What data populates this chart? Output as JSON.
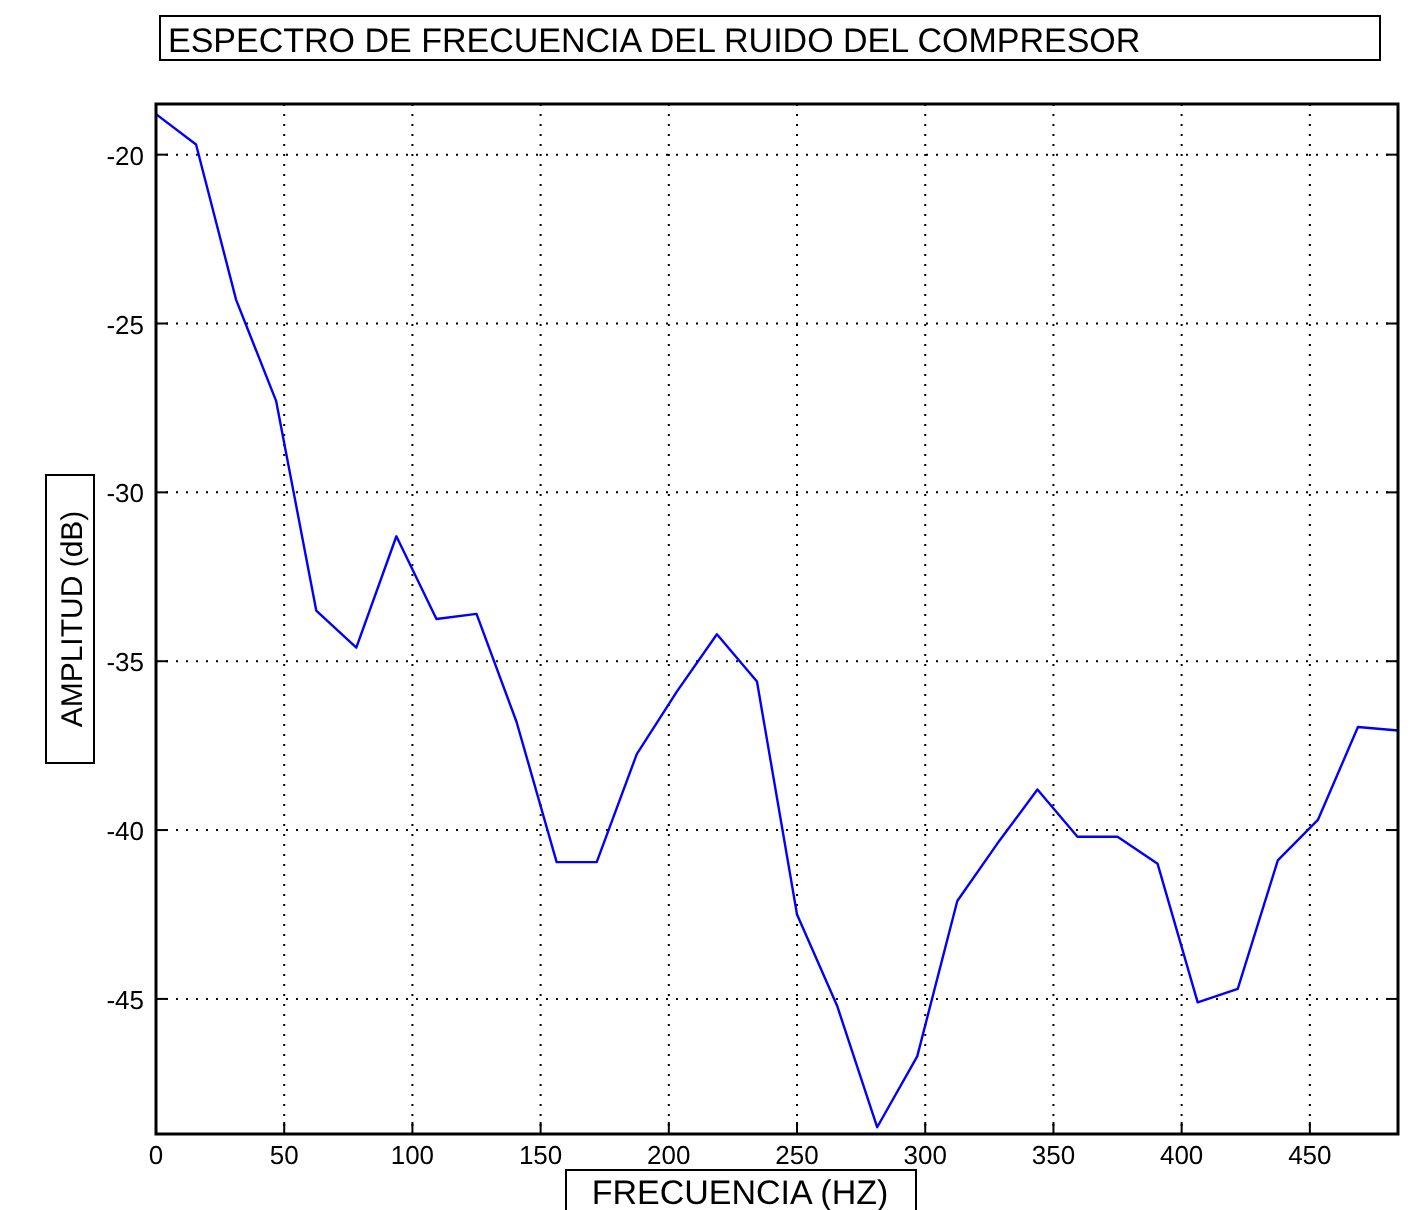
{
  "chart_data": {
    "type": "line",
    "title": "ESPECTRO DE FRECUENCIA DEL RUIDO DEL COMPRESOR",
    "xlabel": "FRECUENCIA (HZ)",
    "ylabel": "AMPLITUD (dB)",
    "x": [
      0,
      15.625,
      31.25,
      46.875,
      62.5,
      78.125,
      93.75,
      109.375,
      125,
      140.625,
      156.25,
      171.875,
      187.5,
      203.125,
      218.75,
      234.375,
      250,
      265.625,
      281.25,
      296.875,
      312.5,
      328.125,
      343.75,
      359.375,
      375,
      390.625,
      406.25,
      421.875,
      437.5,
      453.125,
      468.75,
      484.375
    ],
    "series": [
      {
        "color": "#0000ff",
        "values": [
          -18.8,
          -19.7,
          -24.3,
          -27.3,
          -33.5,
          -34.6,
          -31.3,
          -33.75,
          -33.6,
          -36.8,
          -40.95,
          -40.95,
          -37.75,
          -35.9,
          -34.2,
          -35.6,
          -42.5,
          -45.2,
          -48.8,
          -46.7,
          -42.1,
          -40.4,
          -38.8,
          -40.2,
          -40.2,
          -41.0,
          -45.1,
          -44.7,
          -40.9,
          -39.7,
          -36.95,
          -37.05
        ]
      }
    ],
    "xlim": [
      0,
      484.375
    ],
    "xticks": [
      0,
      50,
      100,
      150,
      200,
      250,
      300,
      350,
      400,
      450
    ],
    "ylim": [
      -49,
      -18.5
    ],
    "yticks": [
      -20,
      -25,
      -30,
      -35,
      -40,
      -45
    ],
    "grid": true,
    "line_style": "solid",
    "marker": "none"
  }
}
